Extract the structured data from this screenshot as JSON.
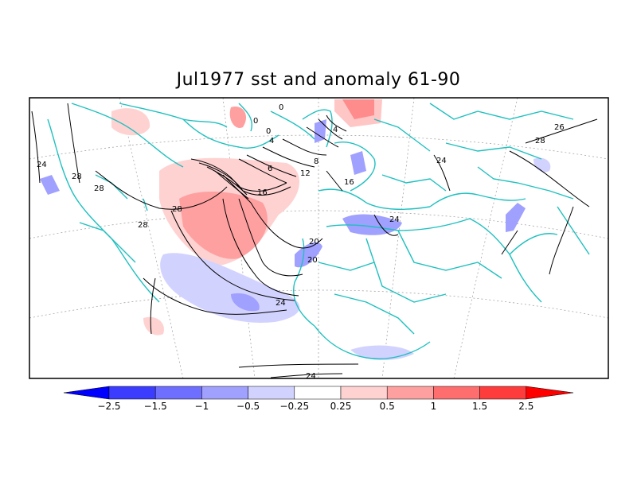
{
  "title": "Jul1977 sst and anomaly 61-90",
  "colorbar": {
    "labels": [
      "-2.5",
      "-1.5",
      "-1",
      "-0.5",
      "-0.25",
      "0.25",
      "0.5",
      "1",
      "1.5",
      "2.5"
    ],
    "colors": [
      "#0000ff",
      "#3c3cff",
      "#6e6eff",
      "#a0a0ff",
      "#d2d2ff",
      "#ffffff",
      "#ffd2d2",
      "#ffa0a0",
      "#ff6e6e",
      "#ff3c3c",
      "#ff0000"
    ]
  },
  "contour_labels": [
    "0",
    "0",
    "4",
    "0",
    "6",
    "4",
    "8",
    "12",
    "16",
    "16",
    "20",
    "20",
    "24",
    "24",
    "24",
    "24",
    "24",
    "26",
    "28",
    "28",
    "28",
    "28",
    "28"
  ],
  "colors": {
    "coastline": "#20c0c0",
    "positive_anomaly": "#ff8080",
    "negative_anomaly": "#b0b0ff"
  }
}
